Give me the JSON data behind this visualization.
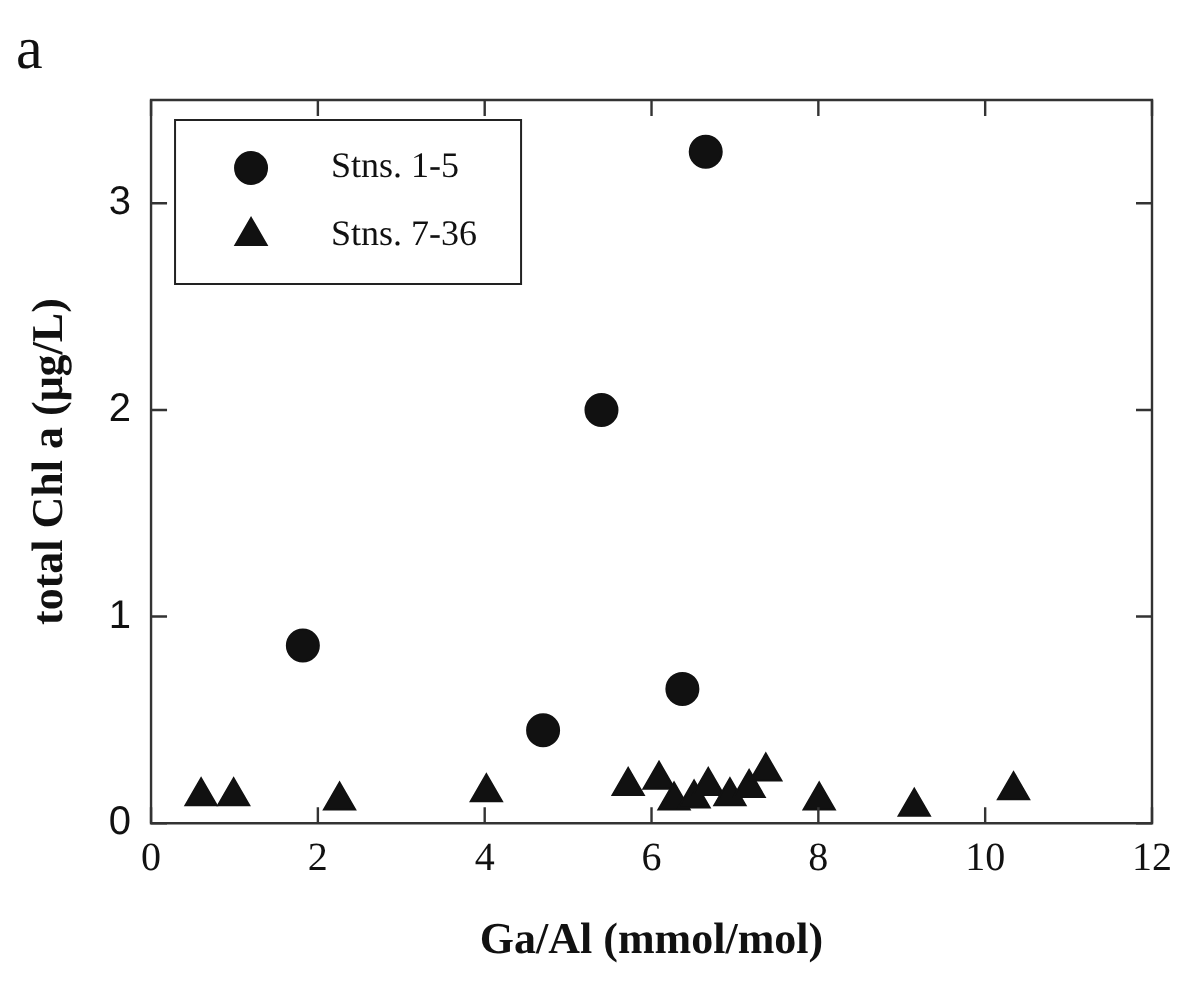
{
  "chart_data": {
    "type": "scatter",
    "title": "a",
    "xlabel": "Ga/Al (mmol/mol)",
    "ylabel": "total Chl a (μg/L)",
    "xlim": [
      0,
      12
    ],
    "xticks": [
      0,
      2,
      4,
      6,
      8,
      10,
      12
    ],
    "ylim": [
      0,
      3.5
    ],
    "yticks": [
      0,
      1,
      2,
      3
    ],
    "grid": false,
    "legend": "top left",
    "series": [
      {
        "name": "Stns. 1-5",
        "color": "#111111",
        "marker": "circle",
        "x": [
          1.82,
          4.7,
          5.4,
          6.37,
          6.65
        ],
        "values": [
          0.86,
          0.45,
          2.0,
          0.65,
          3.25
        ]
      },
      {
        "name": "Stns. 7-36",
        "color": "#111111",
        "marker": "triangle",
        "x": [
          0.6,
          0.99,
          2.26,
          4.02,
          5.72,
          6.09,
          6.27,
          6.51,
          6.68,
          6.94,
          7.17,
          7.37,
          8.01,
          9.15,
          10.34
        ],
        "values": [
          0.13,
          0.13,
          0.11,
          0.15,
          0.18,
          0.21,
          0.11,
          0.12,
          0.18,
          0.13,
          0.17,
          0.25,
          0.11,
          0.08,
          0.16
        ]
      }
    ]
  }
}
